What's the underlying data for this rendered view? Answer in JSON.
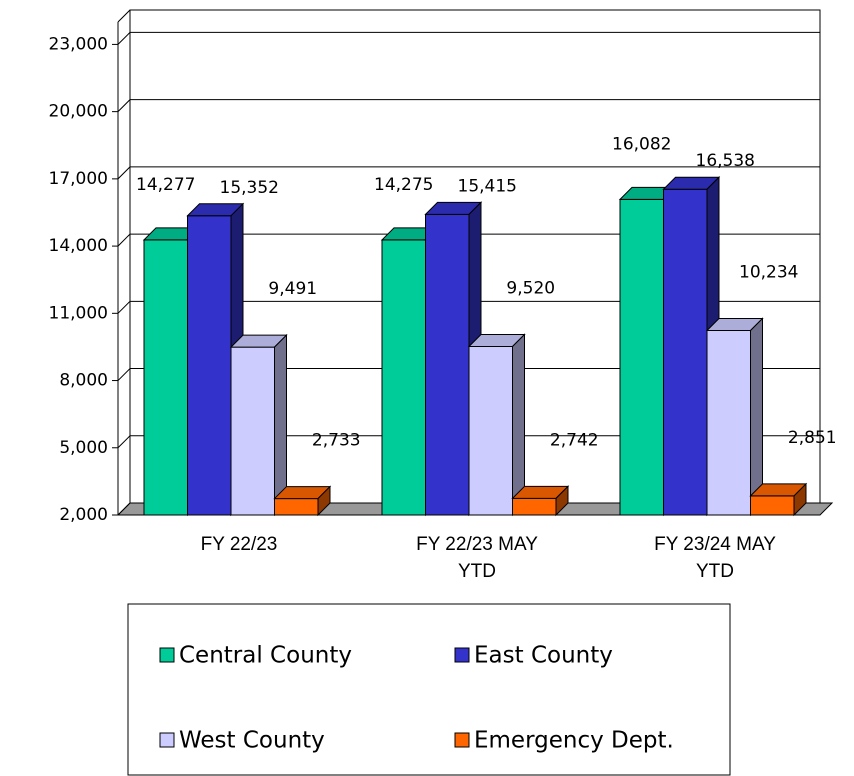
{
  "chart_data": {
    "type": "bar3d",
    "categories": [
      "FY 22/23",
      "FY 22/23 MAY YTD",
      "FY 23/24 MAY YTD"
    ],
    "series": [
      {
        "name": "Central County",
        "color": "#00cc99",
        "values": [
          14277,
          14275,
          16082
        ],
        "value_labels": [
          "14,277",
          "14,275",
          "16,082"
        ]
      },
      {
        "name": "East County",
        "color": "#3333cc",
        "values": [
          15352,
          15415,
          16538
        ],
        "value_labels": [
          "15,352",
          "15,415",
          "16,538"
        ]
      },
      {
        "name": "West County",
        "color": "#ccccff",
        "values": [
          9491,
          9520,
          10234
        ],
        "value_labels": [
          "9,491",
          "9,520",
          "10,234"
        ]
      },
      {
        "name": "Emergency Dept.",
        "color": "#ff6600",
        "values": [
          2733,
          2742,
          2851
        ],
        "value_labels": [
          "2,733",
          "2,742",
          "2,851"
        ]
      }
    ],
    "ylim": [
      2000,
      24000
    ],
    "yticks": [
      {
        "value": 2000,
        "label": "2,000"
      },
      {
        "value": 5000,
        "label": "5,000"
      },
      {
        "value": 8000,
        "label": "8,000"
      },
      {
        "value": 11000,
        "label": "11,000"
      },
      {
        "value": 14000,
        "label": "14,000"
      },
      {
        "value": 17000,
        "label": "17,000"
      },
      {
        "value": 20000,
        "label": "20,000"
      },
      {
        "value": 23000,
        "label": "23,000"
      }
    ],
    "grid": true,
    "legend": "bottom"
  }
}
